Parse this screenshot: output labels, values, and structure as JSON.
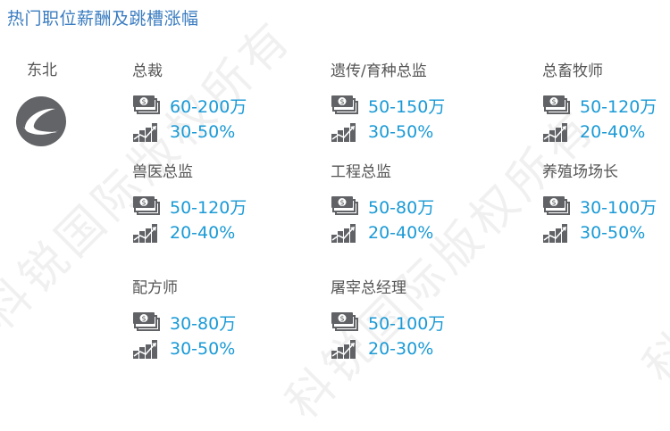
{
  "title": "热门职位薪酬及跳槽涨幅",
  "region": "东北",
  "watermark": "科锐国际版权所有",
  "colors": {
    "title": "#3a7cc0",
    "value": "#1a9ad6",
    "label": "#555555",
    "icon": "#606266"
  },
  "jobs": [
    {
      "title": "总裁",
      "salary": "60-200万",
      "raise": "30-50%"
    },
    {
      "title": "遗传/育种总监",
      "salary": "50-150万",
      "raise": "30-50%"
    },
    {
      "title": "总畜牧师",
      "salary": "50-120万",
      "raise": "20-40%"
    },
    {
      "title": "兽医总监",
      "salary": "50-120万",
      "raise": "20-40%"
    },
    {
      "title": "工程总监",
      "salary": "50-80万",
      "raise": "20-40%"
    },
    {
      "title": "养殖场场长",
      "salary": "30-100万",
      "raise": "30-50%"
    },
    {
      "title": "配方师",
      "salary": "30-80万",
      "raise": "30-50%"
    },
    {
      "title": "屠宰总经理",
      "salary": "50-100万",
      "raise": "20-30%"
    }
  ]
}
